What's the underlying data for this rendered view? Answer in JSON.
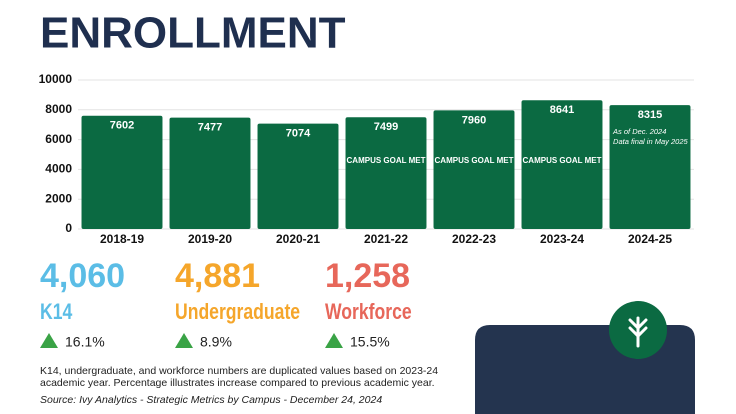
{
  "chart_data": {
    "type": "bar",
    "title": "ENROLLMENT",
    "categories": [
      "2018-19",
      "2019-20",
      "2020-21",
      "2021-22",
      "2022-23",
      "2023-24",
      "2024-25"
    ],
    "values": [
      7602,
      7477,
      7074,
      7499,
      7960,
      8641,
      8315
    ],
    "color": "#0b6a42",
    "ylim": [
      0,
      10000
    ],
    "yticks": [
      0,
      2000,
      4000,
      6000,
      8000,
      10000
    ],
    "grid": true,
    "goal_labels": [
      null,
      null,
      null,
      "CAMPUS GOAL MET",
      "CAMPUS GOAL MET",
      "CAMPUS GOAL MET",
      null
    ],
    "notes": [
      null,
      null,
      null,
      null,
      null,
      null,
      [
        "As of Dec. 2024",
        "Data final in May 2025"
      ]
    ]
  },
  "stats": [
    {
      "value": "4,060",
      "label": "K14",
      "change": "16.1%",
      "color": "#5bbde6"
    },
    {
      "value": "4,881",
      "label": "Undergraduate",
      "change": "8.9%",
      "color": "#f5a62b"
    },
    {
      "value": "1,258",
      "label": "Workforce",
      "change": "15.5%",
      "color": "#e7675a"
    }
  ],
  "footnote": "K14, undergraduate, and workforce numbers are duplicated values based on 2023-24 academic year. Percentage illustrates increase compared to previous academic year.",
  "source": "Source: Ivy Analytics - Strategic Metrics by Campus - December 24, 2024"
}
